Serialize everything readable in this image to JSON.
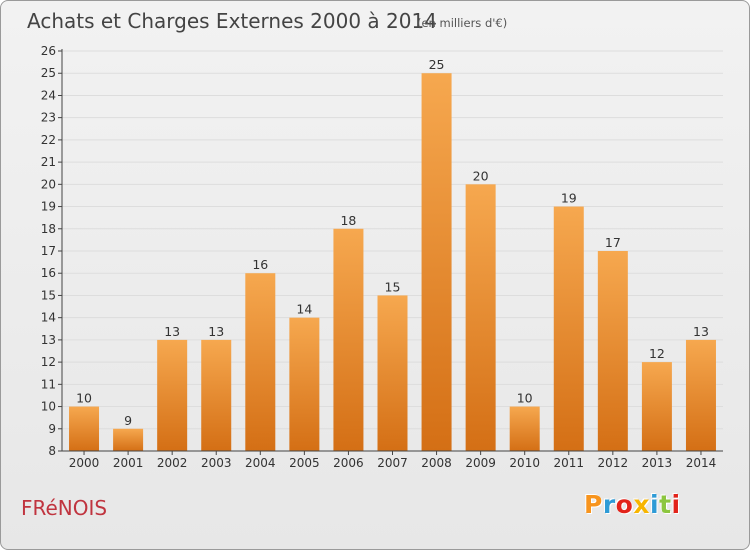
{
  "header": {
    "title": "Achats et Charges Externes 2000 à 2014",
    "subtitle": "(en milliers d'€)"
  },
  "footer": {
    "commune": "FRéNOIS",
    "brand": "Proxiti",
    "brand_colors": [
      "#f7941d",
      "#2e9bd6",
      "#e2231a",
      "#f7b500",
      "#2e9bd6",
      "#8cc63f",
      "#e2231a"
    ]
  },
  "colors": {
    "bar_top": "#f6a84f",
    "bar_bottom": "#d46f15",
    "axis": "#444444",
    "grid": "#dddddd"
  },
  "chart_data": {
    "type": "bar",
    "title": "Achats et Charges Externes 2000 à 2014",
    "subtitle": "(en milliers d'€)",
    "xlabel": "",
    "ylabel": "",
    "categories": [
      "2000",
      "2001",
      "2002",
      "2003",
      "2004",
      "2005",
      "2006",
      "2007",
      "2008",
      "2009",
      "2010",
      "2011",
      "2012",
      "2013",
      "2014"
    ],
    "values": [
      10,
      9,
      13,
      13,
      16,
      14,
      18,
      15,
      25,
      20,
      10,
      19,
      17,
      12,
      13
    ],
    "ylim": [
      8,
      26
    ],
    "yticks": [
      8,
      9,
      10,
      11,
      12,
      13,
      14,
      15,
      16,
      17,
      18,
      19,
      20,
      21,
      22,
      23,
      24,
      25,
      26
    ],
    "grid": true,
    "legend": "none"
  }
}
